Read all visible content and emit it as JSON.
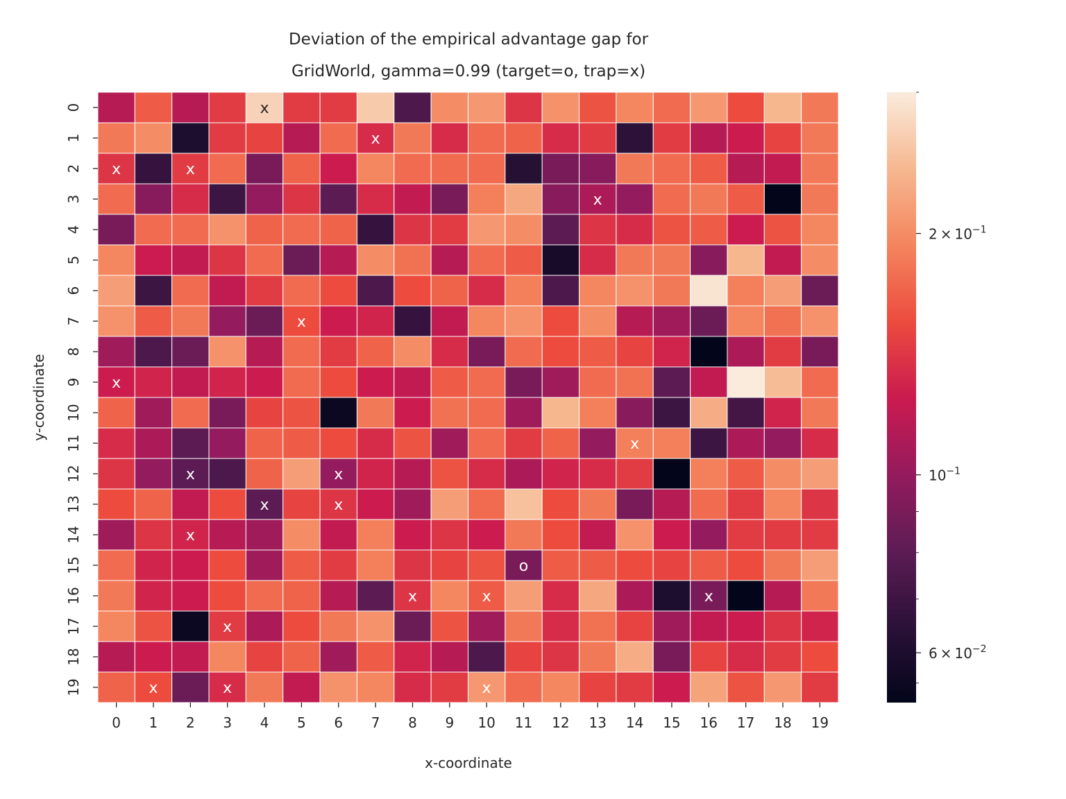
{
  "chart_data": {
    "type": "heatmap",
    "title_lines": [
      "Deviation of the empirical advantage gap for",
      "GridWorld, gamma=0.99 (target=o, trap=x)"
    ],
    "xlabel": "x-coordinate",
    "ylabel": "y-coordinate",
    "x_ticks": [
      "0",
      "1",
      "2",
      "3",
      "4",
      "5",
      "6",
      "7",
      "8",
      "9",
      "10",
      "11",
      "12",
      "13",
      "14",
      "15",
      "16",
      "17",
      "18",
      "19"
    ],
    "y_ticks": [
      "0",
      "1",
      "2",
      "3",
      "4",
      "5",
      "6",
      "7",
      "8",
      "9",
      "10",
      "11",
      "12",
      "13",
      "14",
      "15",
      "16",
      "17",
      "18",
      "19"
    ],
    "colorbar": {
      "scale": "log",
      "range": [
        0.052,
        0.3
      ],
      "major_ticks": [
        {
          "value": 0.2,
          "mantissa": "2",
          "exponent": "−1"
        },
        {
          "value": 0.1,
          "mantissa": "",
          "exponent": "−1"
        },
        {
          "value": 0.06,
          "mantissa": "6",
          "exponent": "−2"
        }
      ],
      "minor_ticks": [
        0.09,
        0.08,
        0.07,
        0.055,
        0.3
      ],
      "colormap": "rocket"
    },
    "cell_grid_color": "#ffffff",
    "values": [
      [
        0.115,
        0.165,
        0.115,
        0.145,
        0.27,
        0.145,
        0.145,
        0.26,
        0.075,
        0.2,
        0.21,
        0.14,
        0.205,
        0.16,
        0.195,
        0.175,
        0.21,
        0.155,
        0.24,
        0.185
      ],
      [
        0.185,
        0.2,
        0.06,
        0.145,
        0.15,
        0.115,
        0.175,
        0.135,
        0.185,
        0.135,
        0.175,
        0.17,
        0.135,
        0.145,
        0.065,
        0.145,
        0.115,
        0.125,
        0.15,
        0.185
      ],
      [
        0.14,
        0.068,
        0.145,
        0.175,
        0.09,
        0.17,
        0.125,
        0.195,
        0.175,
        0.175,
        0.175,
        0.063,
        0.09,
        0.095,
        0.185,
        0.175,
        0.165,
        0.115,
        0.12,
        0.185
      ],
      [
        0.175,
        0.095,
        0.135,
        0.07,
        0.1,
        0.14,
        0.08,
        0.135,
        0.12,
        0.09,
        0.19,
        0.225,
        0.095,
        0.11,
        0.1,
        0.175,
        0.185,
        0.165,
        0.052,
        0.185
      ],
      [
        0.09,
        0.175,
        0.175,
        0.205,
        0.17,
        0.175,
        0.17,
        0.068,
        0.14,
        0.145,
        0.21,
        0.2,
        0.08,
        0.14,
        0.135,
        0.16,
        0.165,
        0.125,
        0.16,
        0.195
      ],
      [
        0.195,
        0.125,
        0.12,
        0.14,
        0.175,
        0.085,
        0.115,
        0.2,
        0.18,
        0.115,
        0.175,
        0.165,
        0.058,
        0.135,
        0.185,
        0.185,
        0.095,
        0.24,
        0.12,
        0.2
      ],
      [
        0.215,
        0.07,
        0.175,
        0.12,
        0.145,
        0.175,
        0.155,
        0.075,
        0.155,
        0.17,
        0.135,
        0.19,
        0.075,
        0.195,
        0.205,
        0.185,
        0.29,
        0.19,
        0.215,
        0.085
      ],
      [
        0.205,
        0.165,
        0.185,
        0.1,
        0.085,
        0.155,
        0.125,
        0.13,
        0.068,
        0.12,
        0.195,
        0.205,
        0.155,
        0.2,
        0.115,
        0.105,
        0.085,
        0.195,
        0.18,
        0.205
      ],
      [
        0.105,
        0.075,
        0.085,
        0.205,
        0.115,
        0.175,
        0.145,
        0.17,
        0.2,
        0.135,
        0.09,
        0.175,
        0.155,
        0.165,
        0.15,
        0.13,
        0.052,
        0.11,
        0.145,
        0.09
      ],
      [
        0.125,
        0.13,
        0.12,
        0.13,
        0.125,
        0.175,
        0.155,
        0.125,
        0.12,
        0.165,
        0.175,
        0.09,
        0.105,
        0.175,
        0.18,
        0.08,
        0.12,
        0.3,
        0.245,
        0.175
      ],
      [
        0.17,
        0.105,
        0.175,
        0.09,
        0.15,
        0.16,
        0.055,
        0.185,
        0.125,
        0.18,
        0.175,
        0.105,
        0.24,
        0.19,
        0.095,
        0.07,
        0.23,
        0.072,
        0.13,
        0.185
      ],
      [
        0.135,
        0.11,
        0.08,
        0.1,
        0.17,
        0.165,
        0.155,
        0.135,
        0.16,
        0.105,
        0.175,
        0.145,
        0.17,
        0.1,
        0.19,
        0.19,
        0.07,
        0.11,
        0.1,
        0.135
      ],
      [
        0.14,
        0.1,
        0.08,
        0.075,
        0.17,
        0.215,
        0.1,
        0.13,
        0.115,
        0.16,
        0.135,
        0.11,
        0.13,
        0.135,
        0.145,
        0.048,
        0.19,
        0.165,
        0.2,
        0.215
      ],
      [
        0.155,
        0.17,
        0.12,
        0.155,
        0.08,
        0.15,
        0.14,
        0.125,
        0.105,
        0.215,
        0.175,
        0.25,
        0.155,
        0.185,
        0.09,
        0.115,
        0.175,
        0.145,
        0.195,
        0.14
      ],
      [
        0.105,
        0.14,
        0.13,
        0.115,
        0.105,
        0.2,
        0.12,
        0.19,
        0.125,
        0.14,
        0.125,
        0.185,
        0.155,
        0.12,
        0.205,
        0.125,
        0.1,
        0.145,
        0.145,
        0.145
      ],
      [
        0.175,
        0.13,
        0.125,
        0.155,
        0.105,
        0.165,
        0.145,
        0.19,
        0.14,
        0.15,
        0.16,
        0.09,
        0.165,
        0.165,
        0.155,
        0.15,
        0.165,
        0.155,
        0.185,
        0.215
      ],
      [
        0.185,
        0.13,
        0.125,
        0.155,
        0.175,
        0.17,
        0.115,
        0.08,
        0.14,
        0.195,
        0.165,
        0.215,
        0.135,
        0.225,
        0.11,
        0.06,
        0.09,
        0.052,
        0.115,
        0.185
      ],
      [
        0.195,
        0.16,
        0.055,
        0.145,
        0.11,
        0.155,
        0.185,
        0.205,
        0.085,
        0.16,
        0.105,
        0.185,
        0.135,
        0.18,
        0.15,
        0.105,
        0.12,
        0.125,
        0.14,
        0.13
      ],
      [
        0.115,
        0.125,
        0.12,
        0.195,
        0.15,
        0.17,
        0.105,
        0.165,
        0.13,
        0.115,
        0.075,
        0.15,
        0.14,
        0.185,
        0.23,
        0.09,
        0.15,
        0.135,
        0.145,
        0.155
      ],
      [
        0.17,
        0.155,
        0.085,
        0.135,
        0.185,
        0.12,
        0.205,
        0.195,
        0.135,
        0.145,
        0.21,
        0.175,
        0.195,
        0.15,
        0.145,
        0.125,
        0.22,
        0.16,
        0.21,
        0.145
      ]
    ],
    "markers": [
      {
        "x": 4,
        "y": 0,
        "label": "x"
      },
      {
        "x": 7,
        "y": 1,
        "label": "x"
      },
      {
        "x": 0,
        "y": 2,
        "label": "x"
      },
      {
        "x": 2,
        "y": 2,
        "label": "x"
      },
      {
        "x": 13,
        "y": 3,
        "label": "x"
      },
      {
        "x": 5,
        "y": 7,
        "label": "x"
      },
      {
        "x": 0,
        "y": 9,
        "label": "x"
      },
      {
        "x": 14,
        "y": 11,
        "label": "x"
      },
      {
        "x": 2,
        "y": 12,
        "label": "x"
      },
      {
        "x": 6,
        "y": 12,
        "label": "x"
      },
      {
        "x": 4,
        "y": 13,
        "label": "x"
      },
      {
        "x": 6,
        "y": 13,
        "label": "x"
      },
      {
        "x": 2,
        "y": 14,
        "label": "x"
      },
      {
        "x": 11,
        "y": 15,
        "label": "o"
      },
      {
        "x": 8,
        "y": 16,
        "label": "x"
      },
      {
        "x": 10,
        "y": 16,
        "label": "x"
      },
      {
        "x": 16,
        "y": 16,
        "label": "x"
      },
      {
        "x": 3,
        "y": 17,
        "label": "x"
      },
      {
        "x": 1,
        "y": 19,
        "label": "x"
      },
      {
        "x": 3,
        "y": 19,
        "label": "x"
      },
      {
        "x": 10,
        "y": 19,
        "label": "x"
      }
    ]
  }
}
